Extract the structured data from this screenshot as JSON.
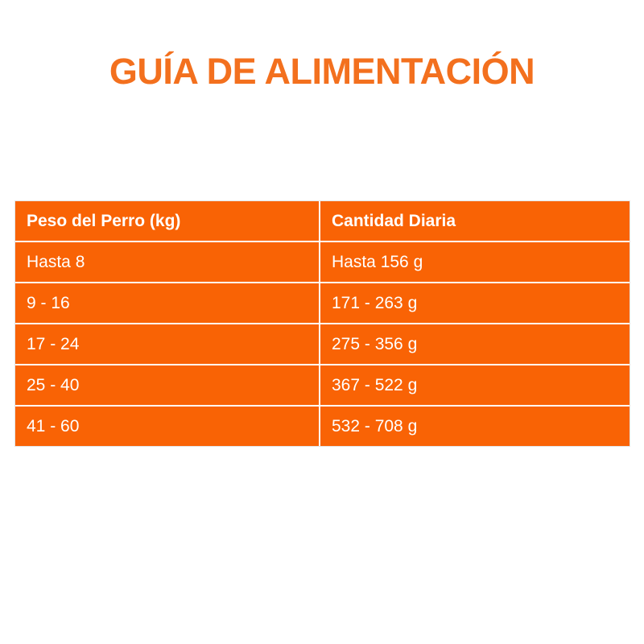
{
  "page": {
    "background": "#FFFFFF",
    "title": "GUÍA DE ALIMENTACIÓN",
    "title_color": "#F3701E"
  },
  "table": {
    "orange": "#F96305",
    "text_color": "#FFFFFF",
    "divider_color": "#FFFFFF",
    "headers": [
      "Peso del Perro (kg)",
      "Cantidad Diaria"
    ],
    "rows": [
      {
        "weight": "Hasta 8",
        "amount": "Hasta 156 g"
      },
      {
        "weight": "9 - 16",
        "amount": "171 - 263 g"
      },
      {
        "weight": "17 - 24",
        "amount": "275 - 356 g"
      },
      {
        "weight": "25 - 40",
        "amount": "367 - 522 g"
      },
      {
        "weight": "41 - 60",
        "amount": "532 - 708 g"
      }
    ]
  },
  "chart_data": {
    "type": "table",
    "title": "GUÍA DE ALIMENTACIÓN",
    "columns": [
      "Peso del Perro (kg)",
      "Cantidad Diaria"
    ],
    "rows": [
      [
        "Hasta 8",
        "Hasta 156 g"
      ],
      [
        "9 - 16",
        "171 - 263 g"
      ],
      [
        "17 - 24",
        "275 - 356 g"
      ],
      [
        "25 - 40",
        "367 - 522 g"
      ],
      [
        "41 - 60",
        "532 - 708 g"
      ]
    ]
  }
}
